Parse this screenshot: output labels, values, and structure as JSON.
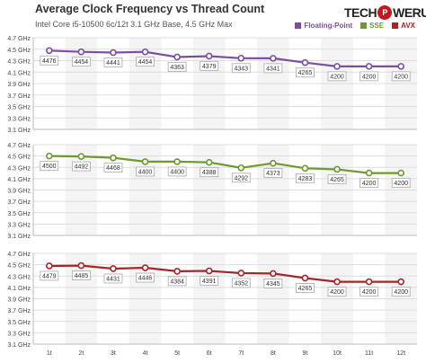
{
  "title": "Average Clock Frequency vs Thread Count",
  "subtitle": "Intel Core i5-10500 6c/12t 3.1 GHz Base, 4.5 GHz Max",
  "logo": {
    "text_left": "TECH",
    "text_power": "P",
    "text_right": "WERUP"
  },
  "legend": [
    {
      "label": "Floating-Point",
      "color": "#7b4fa0"
    },
    {
      "label": "SSE",
      "color": "#6c9a2e"
    },
    {
      "label": "AVX",
      "color": "#a3262a"
    }
  ],
  "chart_data": [
    {
      "type": "line",
      "x": [
        "1t",
        "2t",
        "3t",
        "4t",
        "5t",
        "6t",
        "7t",
        "8t",
        "9t",
        "10t",
        "11t",
        "12t"
      ],
      "yticks": [
        "3.1 GHz",
        "3.3 GHz",
        "3.5 GHz",
        "3.7 GHz",
        "3.9 GHz",
        "4.1 GHz",
        "4.3 GHz",
        "4.5 GHz",
        "4.7 GHz"
      ],
      "ylim": [
        3100,
        4700
      ],
      "series": [
        {
          "name": "Floating-Point",
          "color": "#7b4fa0",
          "values": [
            4476,
            4454,
            4441,
            4454,
            4363,
            4379,
            4343,
            4341,
            4265,
            4200,
            4200,
            4200
          ]
        }
      ]
    },
    {
      "type": "line",
      "x": [
        "1t",
        "2t",
        "3t",
        "4t",
        "5t",
        "6t",
        "7t",
        "8t",
        "9t",
        "10t",
        "11t",
        "12t"
      ],
      "yticks": [
        "3.1 GHz",
        "3.3 GHz",
        "3.5 GHz",
        "3.7 GHz",
        "3.9 GHz",
        "4.1 GHz",
        "4.3 GHz",
        "4.5 GHz",
        "4.7 GHz"
      ],
      "ylim": [
        3100,
        4700
      ],
      "series": [
        {
          "name": "SSE",
          "color": "#6c9a2e",
          "values": [
            4500,
            4492,
            4468,
            4400,
            4400,
            4388,
            4292,
            4373,
            4283,
            4265,
            4200,
            4200
          ]
        }
      ]
    },
    {
      "type": "line",
      "x": [
        "1t",
        "2t",
        "3t",
        "4t",
        "5t",
        "6t",
        "7t",
        "8t",
        "9t",
        "10t",
        "11t",
        "12t"
      ],
      "yticks": [
        "3.1 GHz",
        "3.3 GHz",
        "3.5 GHz",
        "3.7 GHz",
        "3.9 GHz",
        "4.1 GHz",
        "4.3 GHz",
        "4.5 GHz",
        "4.7 GHz"
      ],
      "ylim": [
        3100,
        4700
      ],
      "series": [
        {
          "name": "AVX",
          "color": "#a3262a",
          "values": [
            4479,
            4485,
            4431,
            4446,
            4384,
            4391,
            4352,
            4345,
            4265,
            4200,
            4200,
            4200
          ]
        }
      ]
    }
  ]
}
